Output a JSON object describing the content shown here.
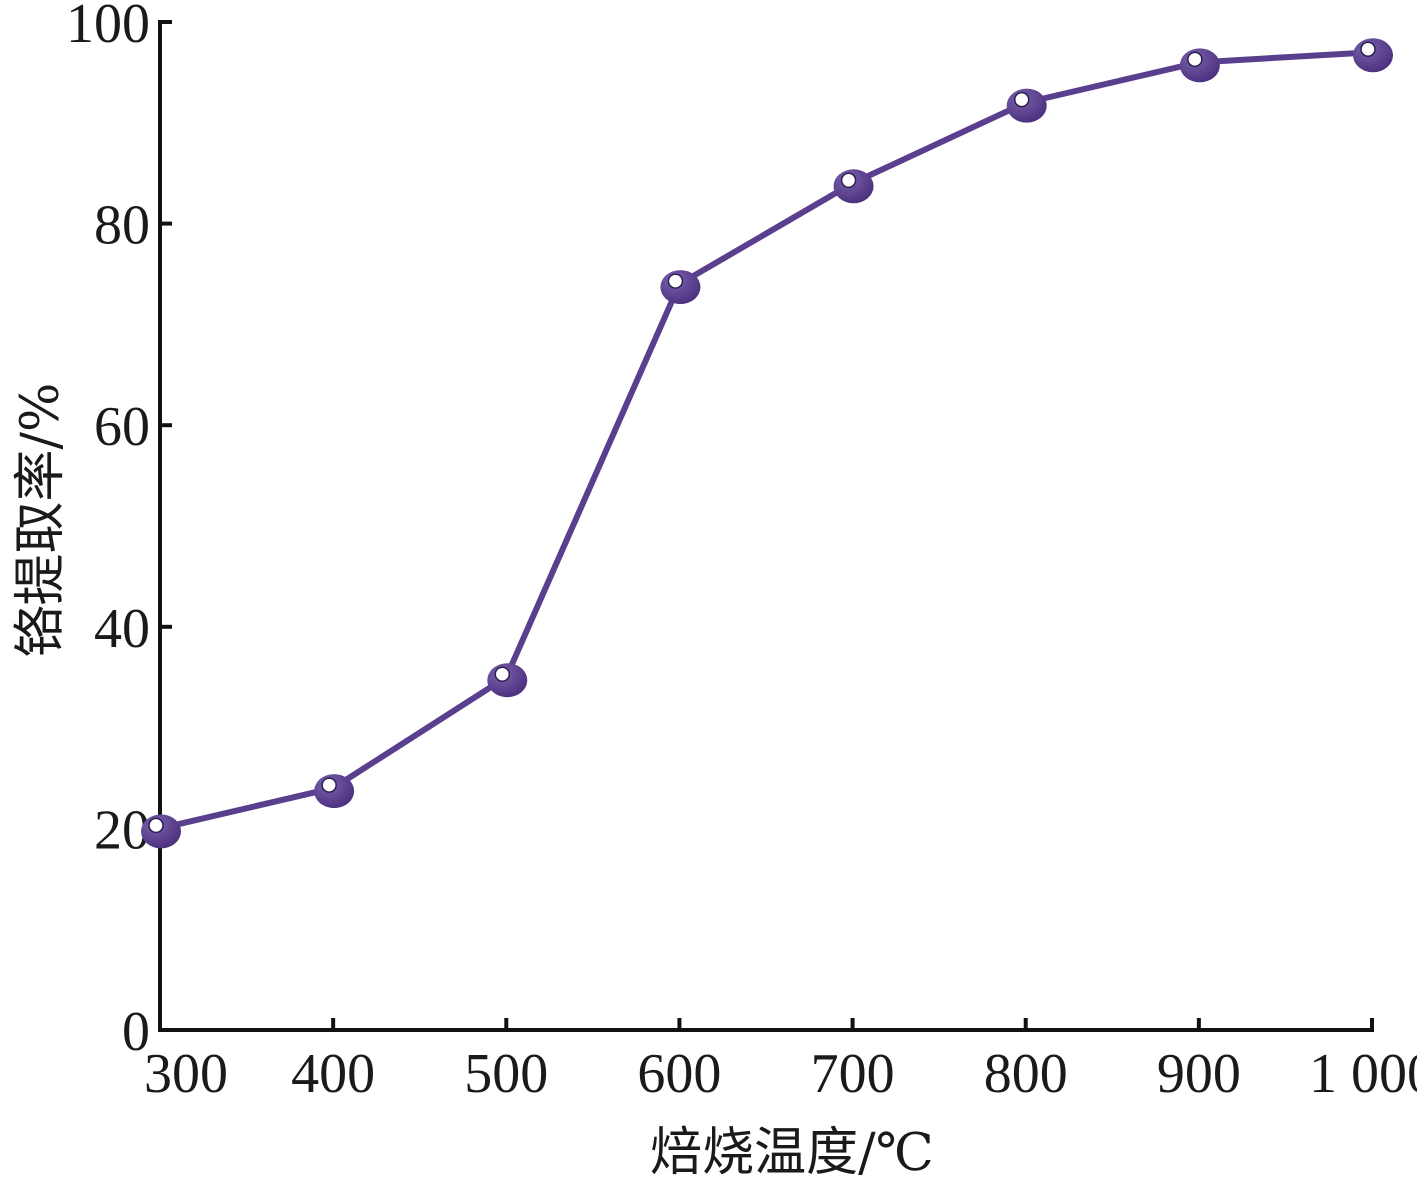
{
  "chart_data": {
    "type": "line",
    "title": "",
    "xlabel": "焙烧温度/℃",
    "ylabel": "铬提取率/%",
    "x": [
      300,
      400,
      500,
      600,
      700,
      800,
      900,
      1000
    ],
    "x_tick_labels": [
      "300",
      "400",
      "500",
      "600",
      "700",
      "800",
      "900",
      "1 000"
    ],
    "xlim": [
      300,
      1000
    ],
    "y_ticks": [
      0,
      20,
      40,
      60,
      80,
      100
    ],
    "y_tick_labels": [
      "0",
      "20",
      "40",
      "60",
      "80",
      "100"
    ],
    "ylim": [
      0,
      100
    ],
    "grid": false,
    "legend": "none",
    "series": [
      {
        "values": [
          20,
          24,
          35,
          74,
          84,
          92,
          96,
          97
        ],
        "color": "#5a3f8e"
      }
    ]
  }
}
